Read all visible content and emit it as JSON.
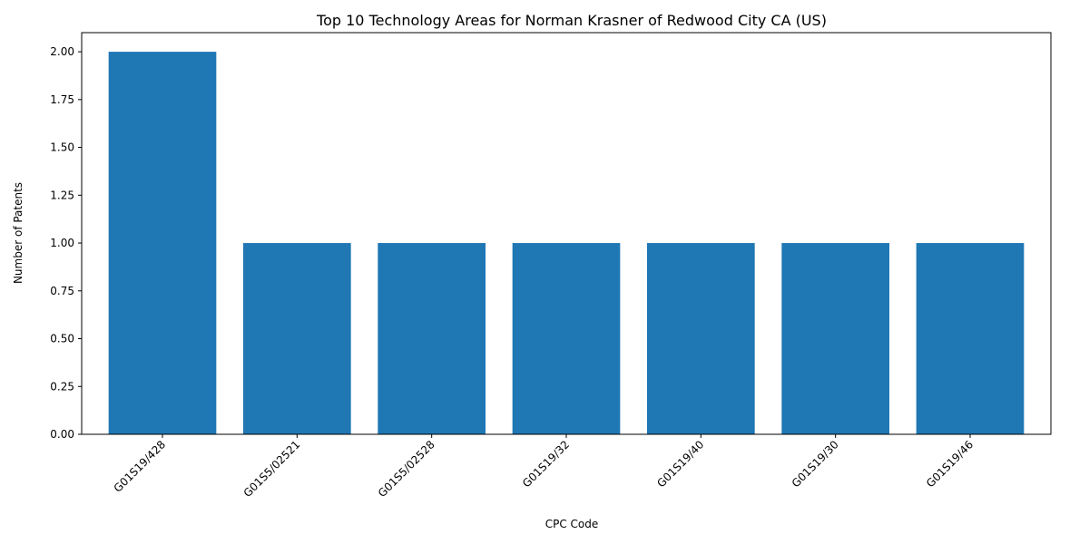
{
  "chart_data": {
    "type": "bar",
    "title": "Top 10 Technology Areas for Norman Krasner of Redwood City CA (US)",
    "xlabel": "CPC Code",
    "ylabel": "Number of Patents",
    "categories": [
      "G01S19/428",
      "G01S5/02521",
      "G01S5/02528",
      "G01S19/32",
      "G01S19/40",
      "G01S19/30",
      "G01S19/46"
    ],
    "values": [
      2,
      1,
      1,
      1,
      1,
      1,
      1
    ],
    "ylim": [
      0,
      2.1
    ],
    "yticks": [
      0.0,
      0.25,
      0.5,
      0.75,
      1.0,
      1.25,
      1.5,
      1.75,
      2.0
    ],
    "ytick_labels": [
      "0.00",
      "0.25",
      "0.50",
      "0.75",
      "1.00",
      "1.25",
      "1.50",
      "1.75",
      "2.00"
    ],
    "bar_color": "#1f77b4",
    "grid": false,
    "legend": "none"
  }
}
